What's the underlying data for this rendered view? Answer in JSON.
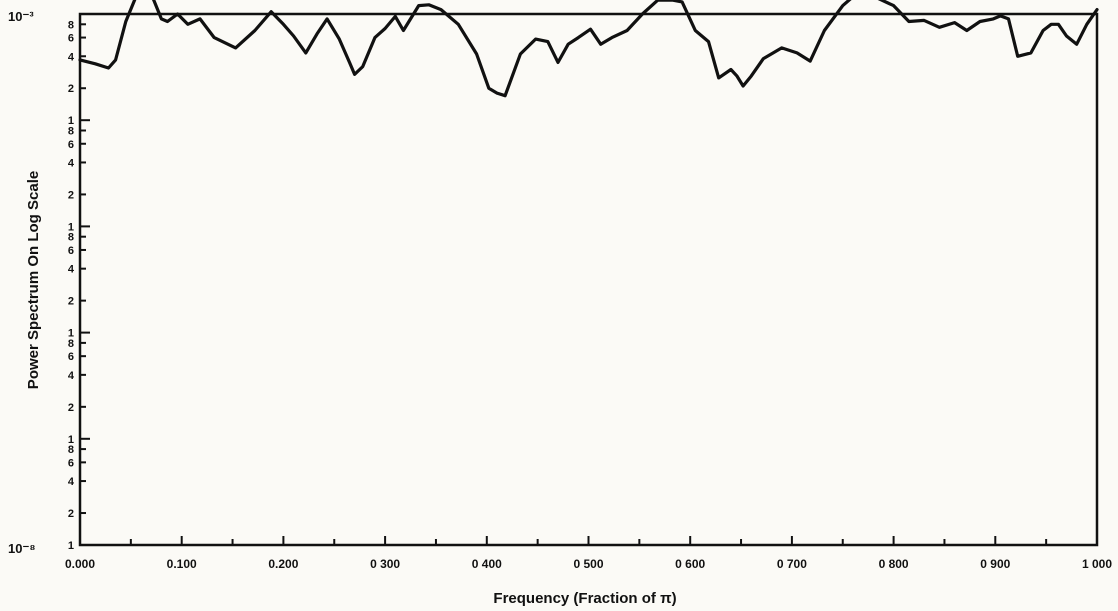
{
  "chart_data": {
    "type": "line",
    "title": "",
    "xlabel": "Frequency (Fraction of π)",
    "ylabel": "Power Spectrum On Log Scale",
    "xlim": [
      0,
      1
    ],
    "ylim": [
      1e-08,
      0.001
    ],
    "y_scale": "log",
    "grid": false,
    "legend": "none",
    "x_ticks": [
      0,
      0.1,
      0.2,
      0.3,
      0.4,
      0.5,
      0.6,
      0.7,
      0.8,
      0.9,
      1.0
    ],
    "x_tick_labels": [
      "0.000",
      "0.100",
      "0.200",
      "0 300",
      "0 400",
      "0 500",
      "0 600",
      "0 700",
      "0 800",
      "0 900",
      "1 000"
    ],
    "y_top_label": "10⁻³",
    "y_bottom_label": "10⁻⁸",
    "y_minor_mantissas": [
      1,
      2,
      4,
      6,
      8
    ],
    "line_color": "#111111",
    "series": [
      {
        "x": [
          0.0,
          0.015,
          0.028,
          0.035,
          0.045,
          0.055,
          0.062,
          0.07,
          0.08,
          0.086,
          0.096,
          0.106,
          0.118,
          0.132,
          0.153,
          0.172,
          0.188,
          0.2,
          0.21,
          0.222,
          0.233,
          0.243,
          0.255,
          0.265,
          0.27,
          0.278,
          0.29,
          0.3,
          0.31,
          0.318,
          0.333,
          0.343,
          0.355,
          0.372,
          0.39,
          0.402,
          0.41,
          0.418,
          0.423,
          0.433,
          0.448,
          0.46,
          0.47,
          0.48,
          0.49,
          0.502,
          0.512,
          0.523,
          0.538,
          0.553,
          0.568,
          0.583,
          0.592,
          0.605,
          0.618,
          0.628,
          0.64,
          0.646,
          0.652,
          0.66,
          0.672,
          0.69,
          0.705,
          0.718,
          0.732,
          0.75,
          0.765,
          0.785,
          0.8,
          0.815,
          0.83,
          0.845,
          0.86,
          0.872,
          0.885,
          0.898,
          0.905,
          0.913,
          0.922,
          0.935,
          0.947,
          0.955,
          0.962,
          0.97,
          0.98,
          0.99,
          1.0
        ],
        "y": [
          0.00037,
          0.00034,
          0.00031,
          0.00037,
          0.00085,
          0.00145,
          0.0016,
          0.00155,
          0.0009,
          0.00085,
          0.001,
          0.0008,
          0.0009,
          0.0006,
          0.00048,
          0.0007,
          0.00105,
          0.0008,
          0.00062,
          0.00043,
          0.00065,
          0.0009,
          0.00058,
          0.00035,
          0.00027,
          0.00032,
          0.0006,
          0.00073,
          0.00095,
          0.0007,
          0.0012,
          0.00122,
          0.0011,
          0.0008,
          0.00042,
          0.0002,
          0.00018,
          0.00017,
          0.00023,
          0.00042,
          0.00058,
          0.00055,
          0.00035,
          0.00052,
          0.0006,
          0.00072,
          0.00052,
          0.0006,
          0.0007,
          0.001,
          0.00135,
          0.00135,
          0.0013,
          0.0007,
          0.00055,
          0.00025,
          0.0003,
          0.00026,
          0.00021,
          0.00026,
          0.00038,
          0.00048,
          0.00043,
          0.00036,
          0.0007,
          0.0012,
          0.0016,
          0.0014,
          0.0012,
          0.00085,
          0.00087,
          0.00075,
          0.00083,
          0.0007,
          0.00085,
          0.0009,
          0.00096,
          0.0009,
          0.0004,
          0.00043,
          0.0007,
          0.0008,
          0.0008,
          0.00062,
          0.00052,
          0.0008,
          0.0011
        ]
      }
    ]
  }
}
